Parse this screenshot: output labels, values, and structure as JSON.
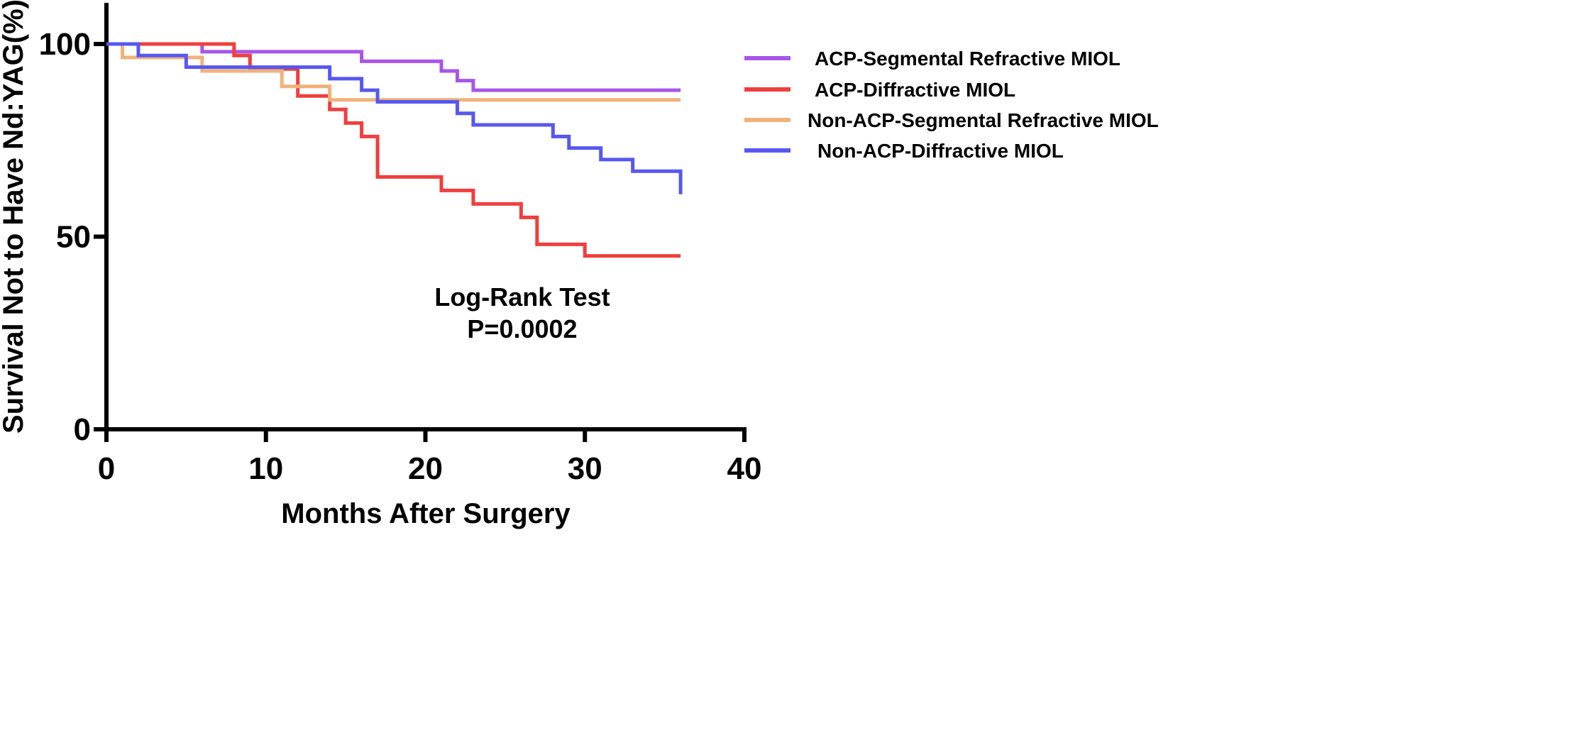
{
  "chart_data": {
    "type": "line",
    "subtype": "kaplan-meier step",
    "xlabel": "Months After Surgery",
    "ylabel": "Survival Not to Have Nd:YAG(%)",
    "xlim": [
      0,
      40
    ],
    "ylim": [
      0,
      110
    ],
    "xticks": [
      0,
      10,
      20,
      30,
      40
    ],
    "yticks": [
      0,
      50,
      100
    ],
    "xtick_labels": [
      "0",
      "10",
      "20",
      "30",
      "40"
    ],
    "ytick_labels": [
      "0",
      "50",
      "100"
    ],
    "grid": false,
    "legend_position": "top-right",
    "annotation": {
      "line1": "Log-Rank Test",
      "line2": "P=0.0002"
    },
    "series": [
      {
        "name": "ACP-Segmental Refractive MIOL",
        "color": "#a855e8",
        "x": [
          0,
          6,
          16,
          21,
          22,
          23,
          36
        ],
        "y": [
          100,
          98,
          95.5,
          93,
          90.5,
          88,
          88
        ]
      },
      {
        "name": "ACP-Diffractive MIOL",
        "color": "#f03e3e",
        "x": [
          0,
          8,
          9,
          12,
          14,
          15,
          16,
          17,
          21,
          23,
          26,
          27,
          30,
          36
        ],
        "y": [
          100,
          97,
          93.5,
          86.5,
          83,
          79.5,
          76,
          65.5,
          62,
          58.5,
          55,
          48,
          45,
          45
        ]
      },
      {
        "name": "Non-ACP-Segmental Refractive MIOL",
        "color": "#f0b27a",
        "x": [
          0,
          1,
          6,
          11,
          14,
          36
        ],
        "y": [
          100,
          96.5,
          93,
          89,
          85.5,
          85.5
        ]
      },
      {
        "name": "Non-ACP-Diffractive MIOL",
        "color": "#5757f0",
        "x": [
          0,
          2,
          5,
          14,
          16,
          17,
          22,
          23,
          28,
          29,
          31,
          33,
          36
        ],
        "y": [
          100,
          97,
          94,
          91,
          88,
          85,
          82,
          79,
          76,
          73,
          70,
          67,
          61
        ]
      }
    ]
  }
}
